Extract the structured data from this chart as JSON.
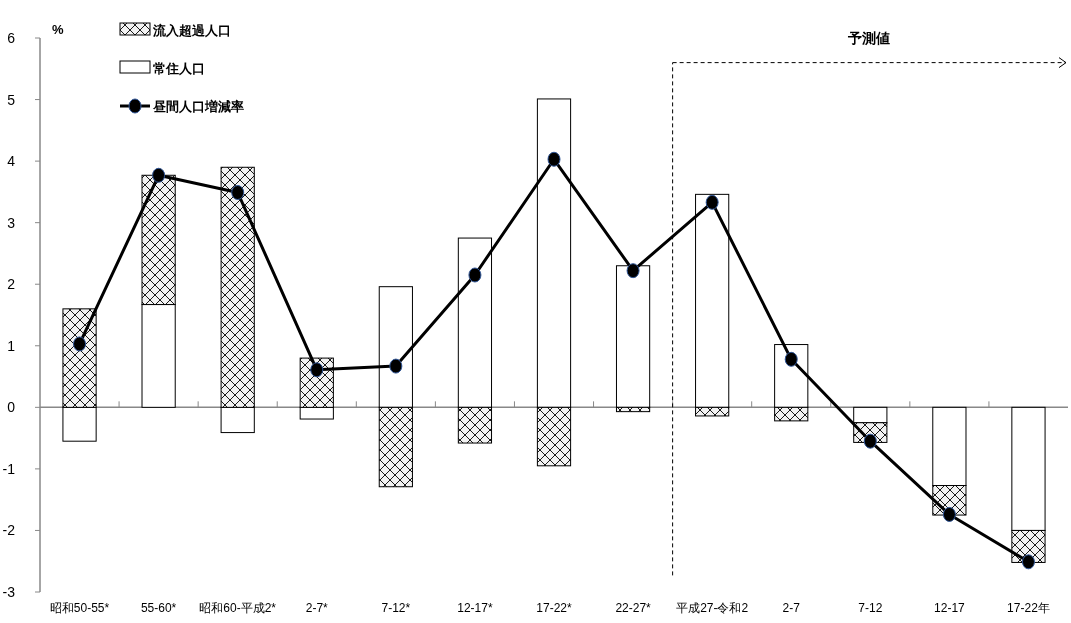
{
  "chart_data": {
    "type": "bar",
    "stacked": true,
    "ylabel": "%",
    "categories": [
      "昭和50-55*",
      "55-60*",
      "昭和60-平成2*",
      "2-7*",
      "7-12*",
      "12-17*",
      "17-22*",
      "22-27*",
      "平成27-令和2",
      "2-7",
      "7-12",
      "12-17",
      "17-22年"
    ],
    "series": [
      {
        "name": "常住人口",
        "color": "#ffffff",
        "values": [
          -0.55,
          1.67,
          -0.41,
          -0.19,
          1.96,
          2.75,
          5.01,
          2.3,
          3.46,
          1.02,
          -0.25,
          -1.27,
          -2.0
        ]
      },
      {
        "name": "流入超過人口",
        "color": "#000000",
        "values": [
          1.6,
          2.1,
          3.9,
          0.8,
          -1.29,
          -0.58,
          -0.95,
          -0.07,
          -0.14,
          -0.22,
          -0.32,
          -0.48,
          -0.52
        ]
      },
      {
        "name": "昼間人口増減率",
        "type": "line",
        "color": "#000000",
        "marker": "circle",
        "values": [
          1.03,
          3.77,
          3.49,
          0.61,
          0.67,
          2.15,
          4.03,
          2.22,
          3.33,
          0.78,
          -0.55,
          -1.74,
          -2.51
        ]
      }
    ],
    "ylim": [
      -3,
      6
    ],
    "yticks": [
      -3,
      -2,
      -1,
      0,
      1,
      2,
      3,
      4,
      5,
      6
    ],
    "legend": "top left",
    "ref_lines": [
      {
        "axis": "x",
        "value": "平成27-令和2",
        "line_style": "dashed"
      },
      {
        "axis": "y",
        "value": 5.6,
        "label": "予測値",
        "line_style": "dashed"
      }
    ]
  }
}
